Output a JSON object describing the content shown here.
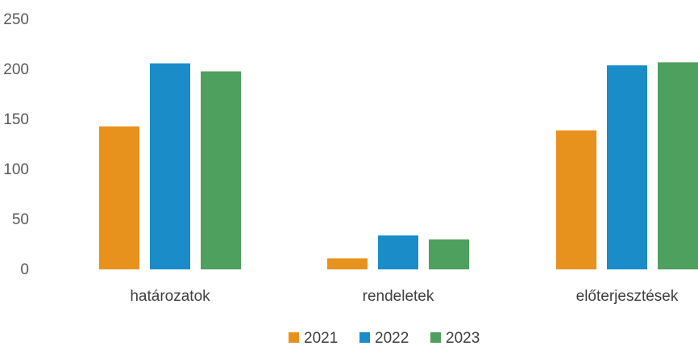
{
  "chart_data": {
    "type": "bar",
    "title": "",
    "xlabel": "",
    "ylabel": "",
    "categories": [
      "határozatok",
      "rendeletek",
      "előterjesztések"
    ],
    "series": [
      {
        "name": "2021",
        "color": "#E8921E",
        "values": [
          143,
          11,
          139
        ]
      },
      {
        "name": "2022",
        "color": "#1A8CC8",
        "values": [
          206,
          34,
          204
        ]
      },
      {
        "name": "2023",
        "color": "#4EA05E",
        "values": [
          198,
          30,
          207
        ]
      }
    ],
    "ylim": [
      0,
      250
    ],
    "yticks": [
      "0",
      "50",
      "100",
      "150",
      "200",
      "250"
    ],
    "grid": false,
    "legend_position": "bottom"
  }
}
